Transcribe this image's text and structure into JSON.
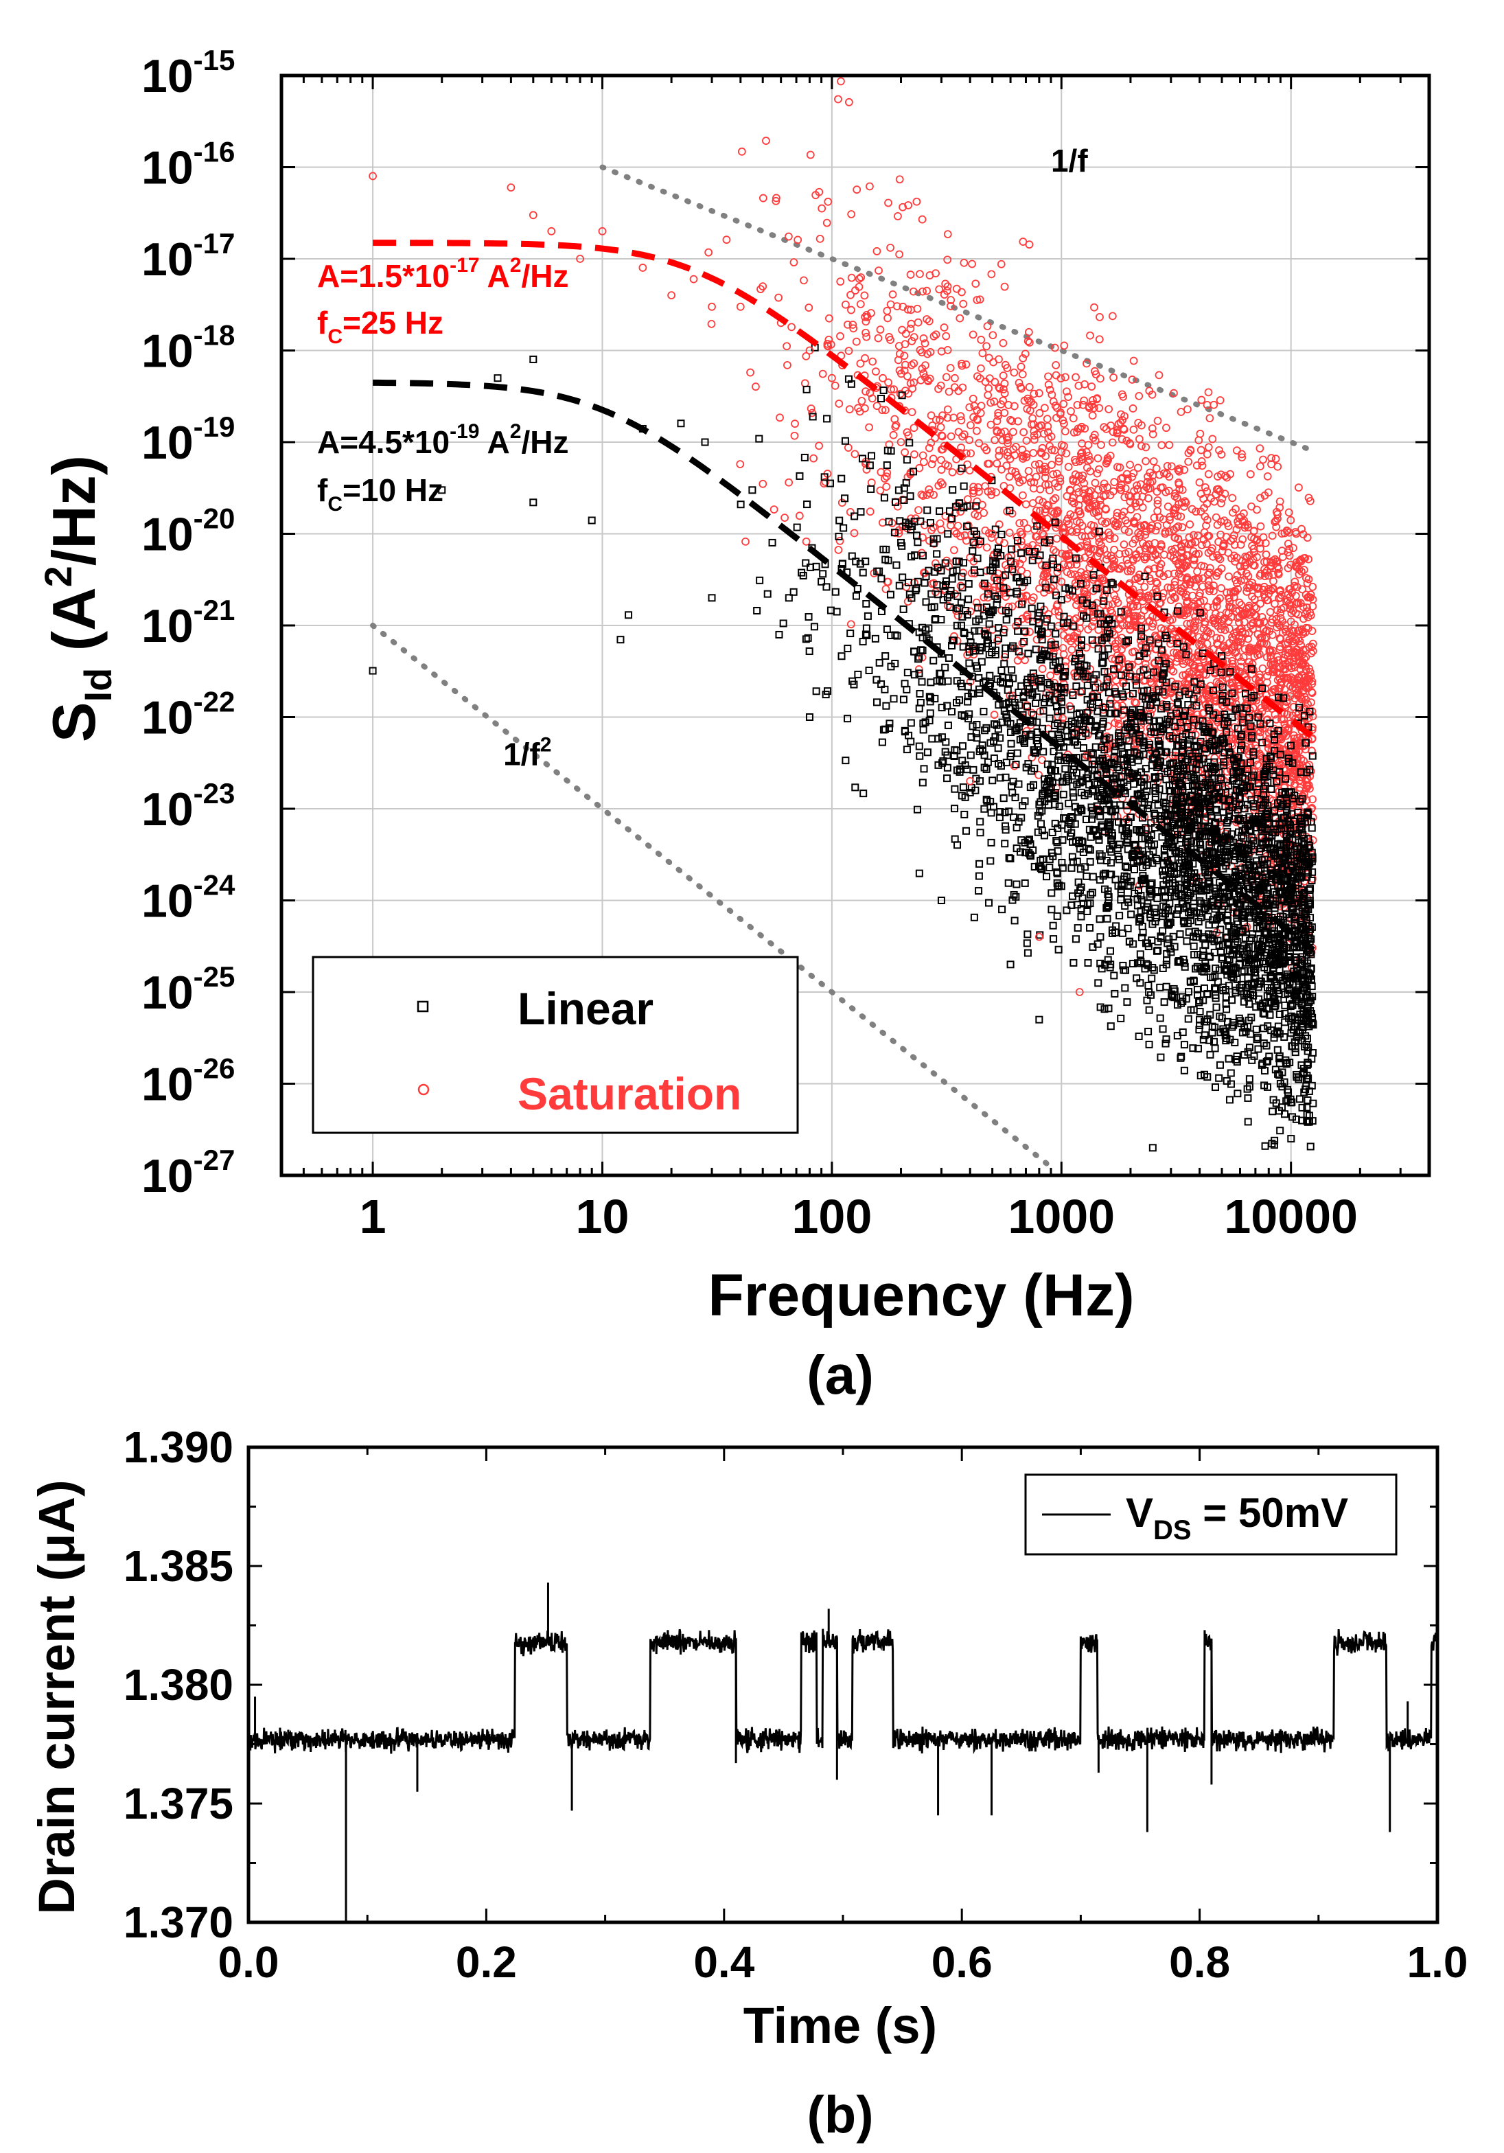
{
  "colors": {
    "linear": "#000000",
    "saturation": "#ff3b3b",
    "fit_red": "#ff0000",
    "guide": "#808080",
    "grid": "#c8c8c8"
  },
  "chart_data": [
    {
      "id": "a",
      "type": "scatter",
      "panel_label": "(a)",
      "xlabel": "Frequency (Hz)",
      "ylabel_main": "S",
      "ylabel_sub": "Id",
      "ylabel_rest": " (A",
      "ylabel_sup": "2",
      "ylabel_end": "/Hz)",
      "xscale": "log",
      "yscale": "log",
      "xlim": [
        0.4,
        40000
      ],
      "ylim": [
        1e-27,
        1e-15
      ],
      "grid": true,
      "x_ticks": [
        {
          "value": 1,
          "label": "1"
        },
        {
          "value": 10,
          "label": "10"
        },
        {
          "value": 100,
          "label": "100"
        },
        {
          "value": 1000,
          "label": "1000"
        },
        {
          "value": 10000,
          "label": "10000"
        }
      ],
      "y_ticks": [
        {
          "exp": -15,
          "base": "10",
          "sup": "-15"
        },
        {
          "exp": -16,
          "base": "10",
          "sup": "-16"
        },
        {
          "exp": -17,
          "base": "10",
          "sup": "-17"
        },
        {
          "exp": -18,
          "base": "10",
          "sup": "-18"
        },
        {
          "exp": -19,
          "base": "10",
          "sup": "-19"
        },
        {
          "exp": -20,
          "base": "10",
          "sup": "-20"
        },
        {
          "exp": -21,
          "base": "10",
          "sup": "-21"
        },
        {
          "exp": -22,
          "base": "10",
          "sup": "-22"
        },
        {
          "exp": -23,
          "base": "10",
          "sup": "-23"
        },
        {
          "exp": -24,
          "base": "10",
          "sup": "-24"
        },
        {
          "exp": -25,
          "base": "10",
          "sup": "-25"
        },
        {
          "exp": -26,
          "base": "10",
          "sup": "-26"
        },
        {
          "exp": -27,
          "base": "10",
          "sup": "-27"
        }
      ],
      "series": [
        {
          "name": "Linear",
          "marker": "square",
          "color": "#000000",
          "fit": {
            "A": 4.5e-19,
            "fc": 10
          },
          "points": [
            [
              1,
              3.2e-22
            ],
            [
              5,
              8e-19
            ],
            [
              2,
              3e-20
            ],
            [
              5,
              2.2e-20
            ],
            [
              9,
              1.4e-20
            ],
            [
              3.5,
              5e-19
            ],
            [
              15,
              1.4e-19
            ],
            [
              13,
              1.3e-21
            ],
            [
              12,
              7e-22
            ],
            [
              30,
              2e-21
            ],
            [
              22,
              1.6e-19
            ],
            [
              28,
              1e-19
            ],
            [
              45,
              3e-20
            ],
            [
              55,
              8e-21
            ],
            [
              65,
              2e-21
            ],
            [
              80,
              1e-22
            ],
            [
              90,
              3e-21
            ],
            [
              110,
              4e-20
            ],
            [
              140,
              5e-21
            ],
            [
              170,
              2e-22
            ],
            [
              200,
              8e-21
            ],
            [
              240,
              3e-22
            ],
            [
              300,
              1e-24
            ],
            [
              350,
              4e-21
            ],
            [
              400,
              1.5e-23
            ],
            [
              500,
              6e-22
            ],
            [
              600,
              2e-25
            ],
            [
              700,
              9e-23
            ],
            [
              800,
              5e-26
            ],
            [
              1500,
              1.8e-25
            ],
            [
              2500,
              2e-27
            ],
            [
              4000,
              5e-26
            ],
            [
              6000,
              3e-24
            ],
            [
              9000,
              1e-26
            ],
            [
              11000,
              6e-25
            ]
          ],
          "cloud": [
            {
              "x": [
                30,
                12500
              ],
              "y": [
                8e-19,
                1e-24
              ]
            },
            {
              "x": [
                80,
                12500
              ],
              "y": [
                1e-20,
                1e-26
              ]
            }
          ]
        },
        {
          "name": "Saturation",
          "marker": "circle",
          "color": "#ff3b3b",
          "fit": {
            "A": 1.5e-17,
            "fc": 25
          },
          "points": [
            [
              1,
              8e-17
            ],
            [
              4,
              6e-17
            ],
            [
              5,
              3e-17
            ],
            [
              6,
              2e-17
            ],
            [
              8,
              1e-17
            ],
            [
              10,
              2e-17
            ],
            [
              15,
              8e-18
            ],
            [
              20,
              4e-18
            ],
            [
              25,
              6e-18
            ],
            [
              30,
              3e-18
            ],
            [
              40,
              3e-18
            ],
            [
              50,
              5e-18
            ],
            [
              60,
              2e-18
            ],
            [
              80,
              1e-18
            ],
            [
              100,
              5e-19
            ],
            [
              150,
              3e-19
            ],
            [
              200,
              1e-19
            ],
            [
              300,
              5e-20
            ],
            [
              500,
              1e-20
            ],
            [
              1000,
              3e-21
            ],
            [
              2000,
              1e-21
            ],
            [
              400,
              2e-23
            ],
            [
              800,
              4e-25
            ],
            [
              1200,
              1e-25
            ]
          ],
          "cloud": [
            {
              "x": [
                20,
                12500
              ],
              "y": [
                1e-17,
                1e-21
              ]
            },
            {
              "x": [
                60,
                12500
              ],
              "y": [
                2e-18,
                1e-25
              ]
            }
          ]
        }
      ],
      "guide_lines": [
        {
          "label": "1/f",
          "label_sup": "",
          "A": 1e-15,
          "slope": -1,
          "x_range": [
            10,
            12000
          ]
        },
        {
          "label": "1/f",
          "label_sup": "2",
          "A": 1e-21,
          "slope": -2,
          "x_range": [
            1,
            900
          ]
        }
      ],
      "annotations": {
        "red_A": "A=1.5*10",
        "red_A_exp": "-17",
        "red_A_unit": " A",
        "red_A_unit_sup": "2",
        "red_A_unit_end": "/Hz",
        "red_fc": "f",
        "red_fc_sub": "C",
        "red_fc_val": "=25 Hz",
        "black_A": "A=4.5*10",
        "black_A_exp": "-19",
        "black_A_unit": " A",
        "black_A_unit_sup": "2",
        "black_A_unit_end": "/Hz",
        "black_fc": "f",
        "black_fc_sub": "C",
        "black_fc_val": "=10 Hz"
      },
      "legend": {
        "position": "bottom-left",
        "entries": [
          "Linear",
          "Saturation"
        ]
      }
    },
    {
      "id": "b",
      "type": "line",
      "panel_label": "(b)",
      "xlabel": "Time (s)",
      "ylabel": "Drain current (μA)",
      "xlim": [
        0.0,
        1.0
      ],
      "ylim": [
        1.37,
        1.39
      ],
      "grid": false,
      "x_ticks": [
        "0.0",
        "0.2",
        "0.4",
        "0.6",
        "0.8",
        "1.0"
      ],
      "y_ticks": [
        "1.390",
        "1.385",
        "1.380",
        "1.375",
        "1.370"
      ],
      "y_tick_values": [
        1.39,
        1.385,
        1.38,
        1.375,
        1.37
      ],
      "x_tick_values": [
        0.0,
        0.2,
        0.4,
        0.6,
        0.8,
        1.0
      ],
      "levels": {
        "low": 1.3777,
        "high": 1.3818
      },
      "high_intervals": [
        [
          0.224,
          0.268
        ],
        [
          0.338,
          0.41
        ],
        [
          0.465,
          0.478
        ],
        [
          0.483,
          0.495
        ],
        [
          0.508,
          0.542
        ],
        [
          0.7,
          0.714
        ],
        [
          0.804,
          0.81
        ],
        [
          0.913,
          0.957
        ],
        [
          0.995,
          1.0
        ]
      ],
      "spikes": [
        [
          0.082,
          1.37
        ],
        [
          0.0055,
          1.3795
        ],
        [
          0.142,
          1.3755
        ],
        [
          0.252,
          1.3843
        ],
        [
          0.272,
          1.3747
        ],
        [
          0.41,
          1.3767
        ],
        [
          0.488,
          1.3832
        ],
        [
          0.495,
          1.376
        ],
        [
          0.58,
          1.3745
        ],
        [
          0.625,
          1.3745
        ],
        [
          0.756,
          1.3738
        ],
        [
          0.96,
          1.3738
        ],
        [
          0.715,
          1.3763
        ],
        [
          0.81,
          1.3758
        ],
        [
          0.975,
          1.3793
        ]
      ],
      "legend": {
        "position": "top-right",
        "label_main": "V",
        "label_sub": "DS",
        "label_rest": " = 50mV"
      }
    }
  ]
}
